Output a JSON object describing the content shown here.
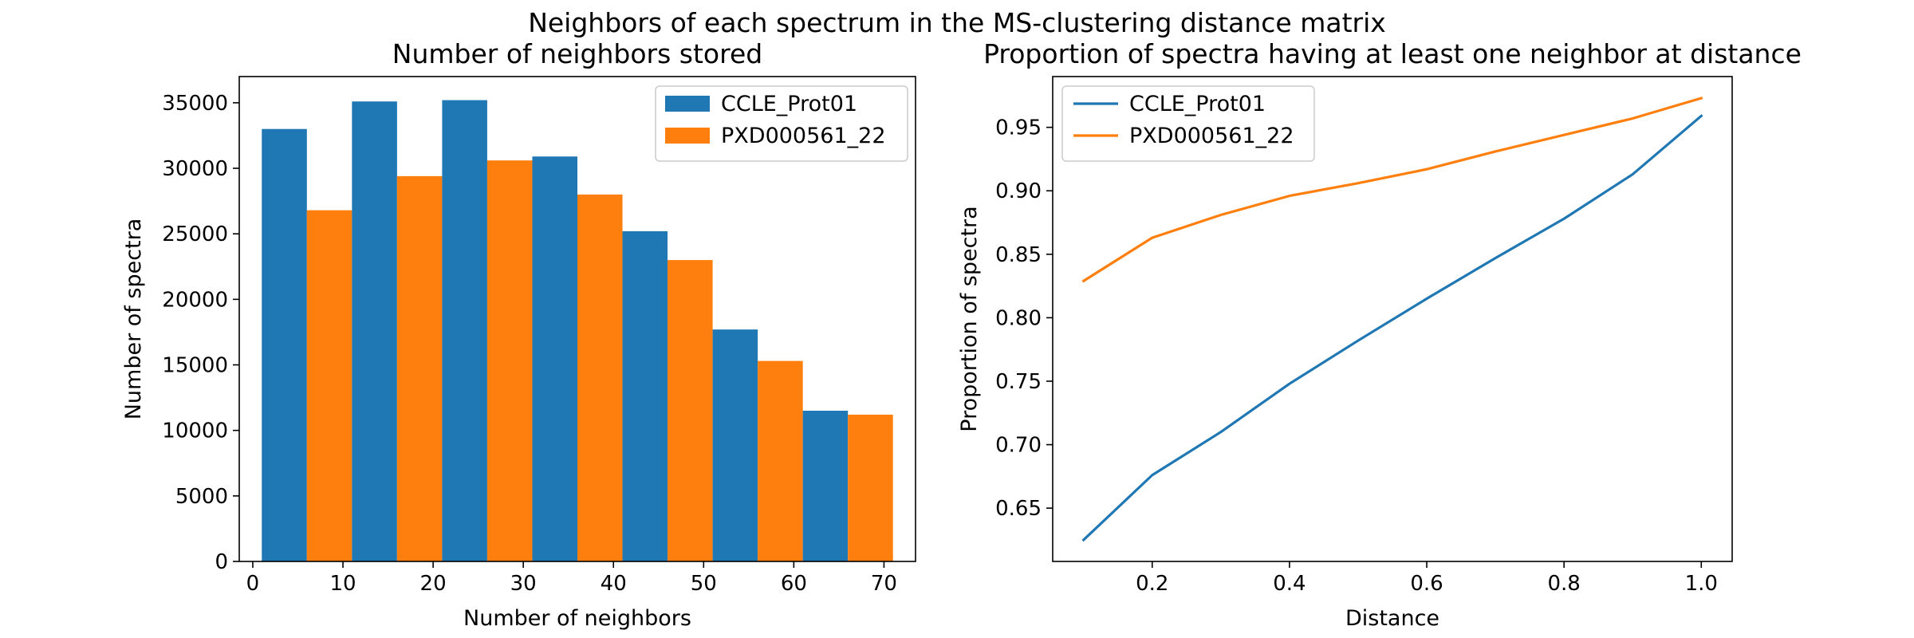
{
  "figure_title": "Neighbors of each spectrum in the MS-clustering distance matrix",
  "colors": {
    "series_0": "#1f77b4",
    "series_1": "#ff7f0e"
  },
  "chart_data": [
    {
      "type": "bar",
      "title": "Number of neighbors stored",
      "xlabel": "Number of neighbors",
      "ylabel": "Number of spectra",
      "x": [
        5,
        15,
        25,
        35,
        45,
        55,
        65
      ],
      "bin_edges": [
        1,
        11,
        21,
        31,
        41,
        51,
        61,
        71
      ],
      "series": [
        {
          "name": "CCLE_Prot01",
          "values": [
            33000,
            35100,
            35200,
            30900,
            25200,
            17700,
            11500
          ]
        },
        {
          "name": "PXD000561_22",
          "values": [
            26800,
            29400,
            30600,
            28000,
            23000,
            15300,
            11200
          ]
        }
      ],
      "xlim": [
        -1.5,
        73.5
      ],
      "ylim": [
        0,
        37000
      ],
      "xticks": [
        0,
        10,
        20,
        30,
        40,
        50,
        60,
        70
      ],
      "yticks": [
        0,
        5000,
        10000,
        15000,
        20000,
        25000,
        30000,
        35000
      ],
      "legend": "top-right",
      "grid": false
    },
    {
      "type": "line",
      "title": "Proportion of spectra having at least one neighbor at distance",
      "xlabel": "Distance",
      "ylabel": "Proportion of spectra",
      "x": [
        0.1,
        0.2,
        0.3,
        0.4,
        0.5,
        0.6,
        0.7,
        0.8,
        0.9,
        1.0
      ],
      "series": [
        {
          "name": "CCLE_Prot01",
          "values": [
            0.625,
            0.676,
            0.71,
            0.748,
            0.782,
            0.815,
            0.847,
            0.878,
            0.913,
            0.959
          ]
        },
        {
          "name": "PXD000561_22",
          "values": [
            0.829,
            0.863,
            0.881,
            0.896,
            0.906,
            0.917,
            0.931,
            0.944,
            0.957,
            0.973
          ]
        }
      ],
      "xlim": [
        0.055,
        1.045
      ],
      "ylim": [
        0.608,
        0.99
      ],
      "xticks": [
        0.2,
        0.4,
        0.6,
        0.8,
        1.0
      ],
      "yticks": [
        0.65,
        0.7,
        0.75,
        0.8,
        0.85,
        0.9,
        0.95
      ],
      "legend": "top-left",
      "grid": false
    }
  ]
}
